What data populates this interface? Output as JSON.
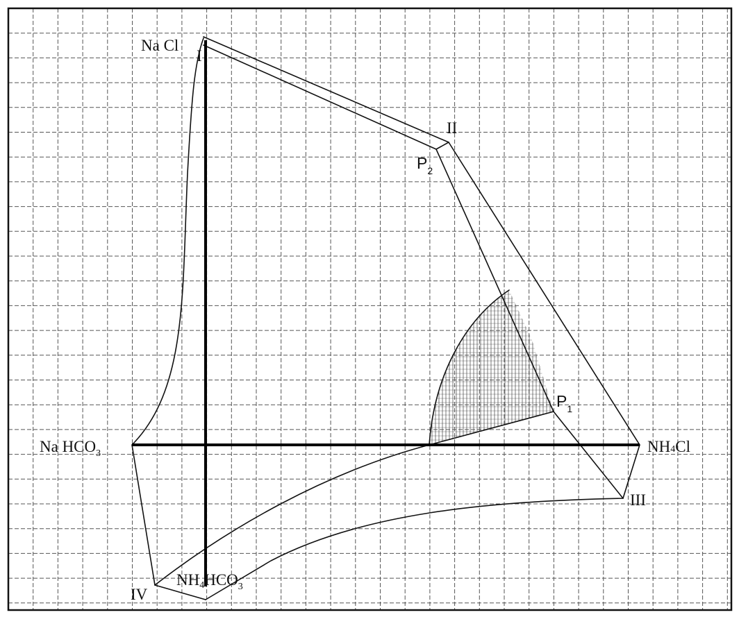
{
  "labels": {
    "nacl": "Na Cl",
    "nahco3_main": "Na HCO",
    "nahco3_sub": "3",
    "nh4cl_a": "NH",
    "nh4cl_sub": "4",
    "nh4cl_b": "Cl",
    "nh4hco3_a": "NH",
    "nh4hco3_sub": "4",
    "nh4hco3_b": "HCO",
    "nh4hco3_sub2": "3",
    "point_I": "I",
    "point_II": "II",
    "point_III": "III",
    "point_IV": "IV",
    "p1_main": "P",
    "p1_sub": "1",
    "p2_main": "P",
    "p2_sub": "2"
  }
}
